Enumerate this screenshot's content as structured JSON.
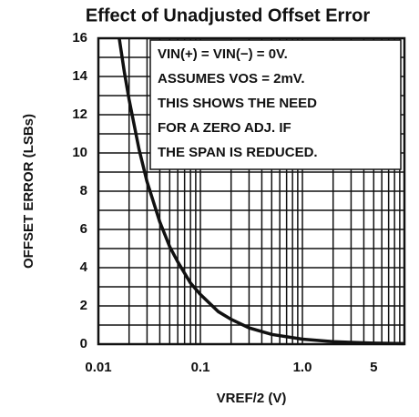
{
  "chart_data": {
    "type": "line",
    "title": "Effect of Unadjusted Offset Error",
    "x_label": "VREF/2 (V)",
    "y_label": "OFFSET ERROR (LSBs)",
    "annotation": [
      "VIN(+) = VIN(−) = 0V.",
      "ASSUMES VOS = 2mV.",
      "THIS SHOWS THE NEED",
      "FOR A ZERO ADJ. IF",
      "THE SPAN IS REDUCED."
    ],
    "x_log": true,
    "xlim": [
      0.01,
      10
    ],
    "ylim": [
      0,
      16
    ],
    "xticks": [
      0.01,
      0.1,
      {
        "value": 1,
        "label": "1.0"
      },
      5
    ],
    "yticks": [
      0,
      2,
      4,
      6,
      8,
      10,
      12,
      14,
      16
    ],
    "x_minor_grid": [
      0.02,
      0.03,
      0.04,
      0.05,
      0.06,
      0.07,
      0.08,
      0.09,
      0.2,
      0.3,
      0.4,
      0.5,
      0.6,
      0.7,
      0.8,
      0.9,
      2,
      3,
      4,
      6,
      7,
      8,
      9
    ],
    "y_minor_grid": [
      1,
      3,
      5,
      7,
      9,
      11,
      13,
      15
    ],
    "grid": true,
    "series": [
      {
        "color": "#111111",
        "x": [
          0.016,
          0.018,
          0.02,
          0.025,
          0.03,
          0.04,
          0.05,
          0.06,
          0.08,
          0.1,
          0.15,
          0.2,
          0.3,
          0.5,
          1,
          2,
          5,
          10
        ],
        "values": [
          16,
          14.2,
          12.8,
          10.2,
          8.5,
          6.4,
          5.1,
          4.3,
          3.2,
          2.6,
          1.7,
          1.3,
          0.85,
          0.51,
          0.26,
          0.13,
          0.05,
          0.03
        ]
      }
    ]
  }
}
